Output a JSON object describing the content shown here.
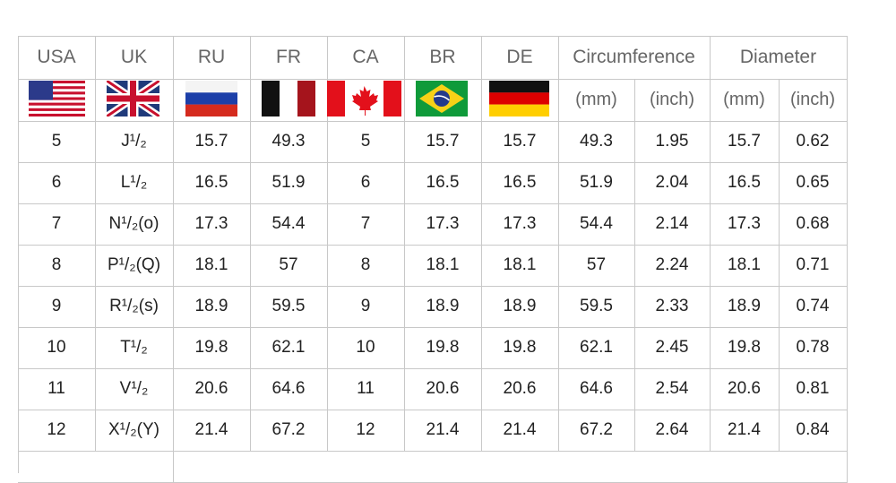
{
  "table": {
    "columns": [
      "USA",
      "UK",
      "RU",
      "FR",
      "CA",
      "BR",
      "DE"
    ],
    "groups": [
      {
        "label": "Circumference",
        "units": [
          "(mm)",
          "(inch)"
        ]
      },
      {
        "label": "Diameter",
        "units": [
          "(mm)",
          "(inch)"
        ]
      }
    ],
    "rows": [
      [
        5,
        "J¹/₂",
        15.7,
        49.3,
        5,
        15.7,
        15.7,
        49.3,
        1.95,
        15.7,
        0.62
      ],
      [
        6,
        "L¹/₂",
        16.5,
        51.9,
        6,
        16.5,
        16.5,
        51.9,
        2.04,
        16.5,
        0.65
      ],
      [
        7,
        "N¹/₂(o)",
        17.3,
        54.4,
        7,
        17.3,
        17.3,
        54.4,
        2.14,
        17.3,
        0.68
      ],
      [
        8,
        "P¹/₂(Q)",
        18.1,
        57,
        8,
        18.1,
        18.1,
        57,
        2.24,
        18.1,
        0.71
      ],
      [
        9,
        "R¹/₂(s)",
        18.9,
        59.5,
        9,
        18.9,
        18.9,
        59.5,
        2.33,
        18.9,
        0.74
      ],
      [
        10,
        "T¹/₂",
        19.8,
        62.1,
        10,
        19.8,
        19.8,
        62.1,
        2.45,
        19.8,
        0.78
      ],
      [
        11,
        "V¹/₂",
        20.6,
        64.6,
        11,
        20.6,
        20.6,
        64.6,
        2.54,
        20.6,
        0.81
      ],
      [
        12,
        "X¹/₂(Y)",
        21.4,
        67.2,
        12,
        21.4,
        21.4,
        67.2,
        2.64,
        21.4,
        0.84
      ]
    ]
  }
}
